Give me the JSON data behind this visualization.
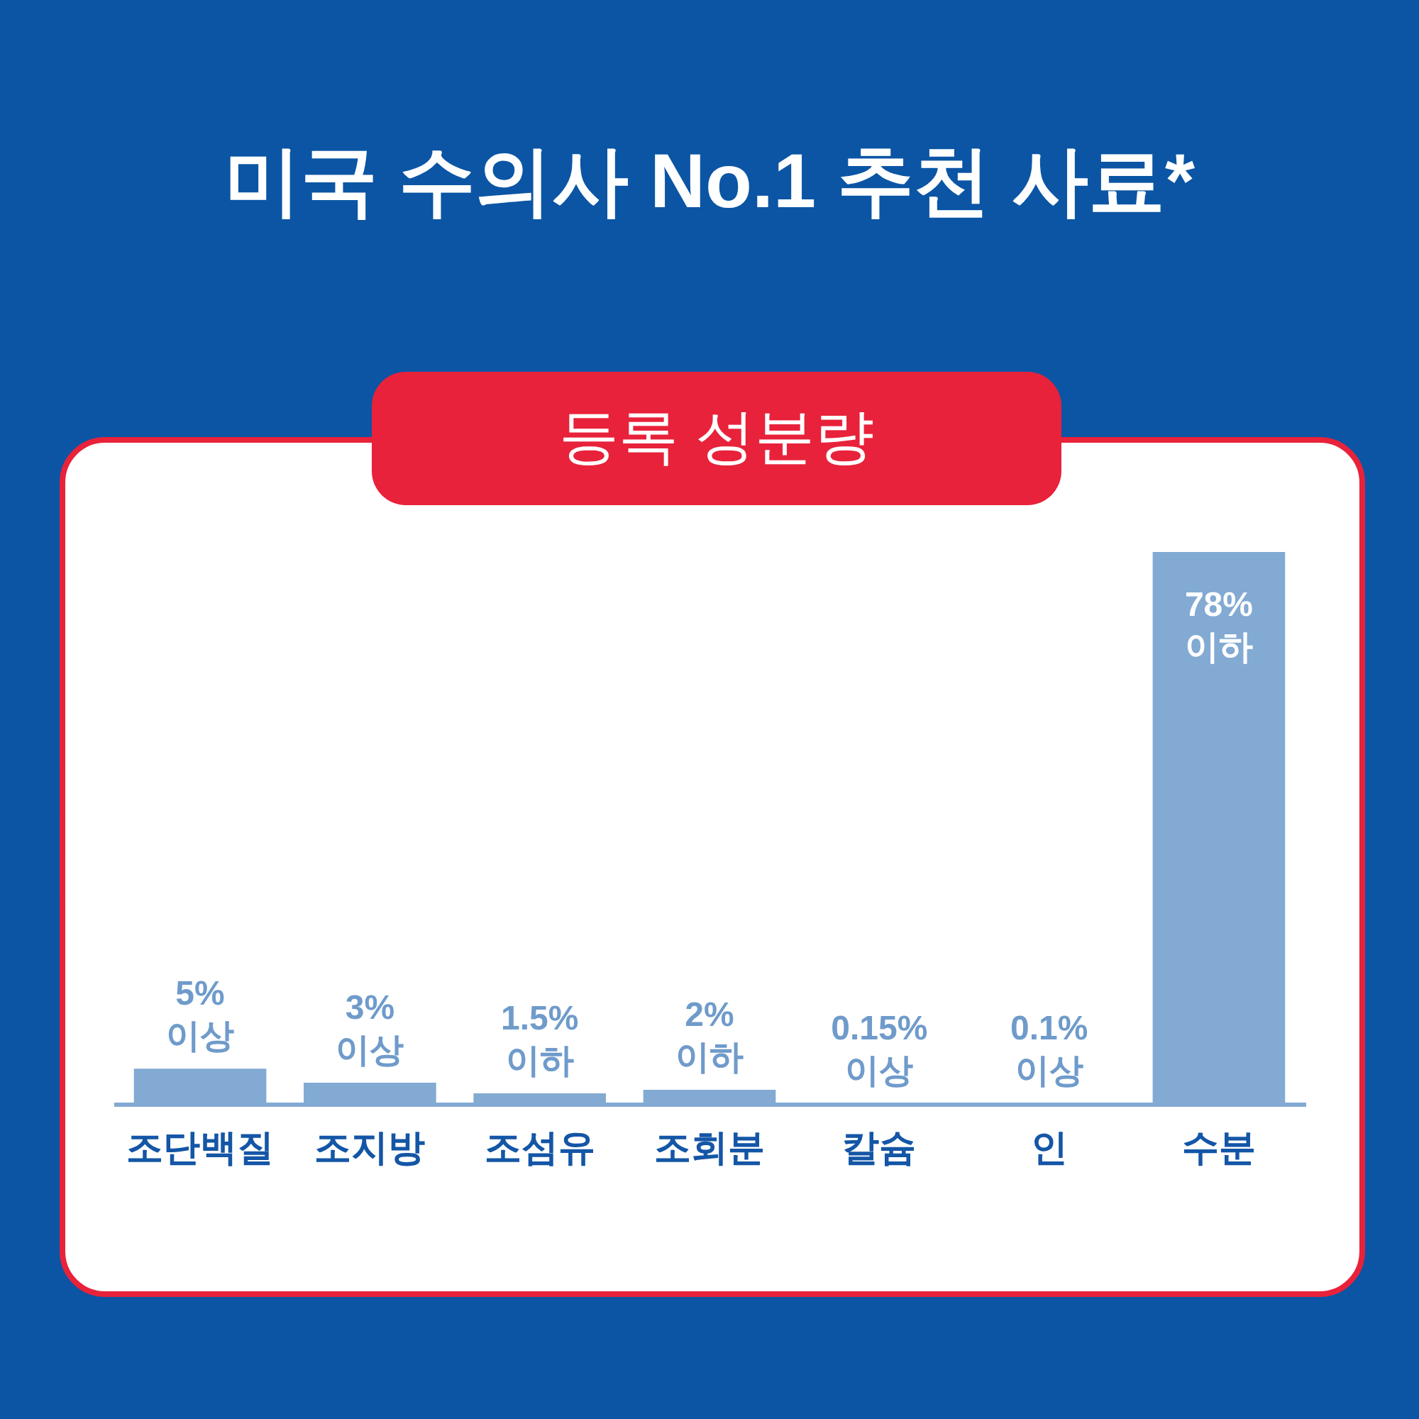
{
  "chart_data": {
    "type": "bar",
    "title": "미국 수의사 No.1 추천 사료*",
    "subtitle": "등록 성분량",
    "categories": [
      "조단백질",
      "조지방",
      "조섬유",
      "조회분",
      "칼슘",
      "인",
      "수분"
    ],
    "values": [
      5,
      3,
      1.5,
      2,
      0.15,
      0.1,
      78
    ],
    "value_labels": [
      "5% 이상",
      "3% 이상",
      "1.5% 이하",
      "2% 이하",
      "0.15% 이상",
      "0.1% 이상",
      "78% 이하"
    ],
    "color": "#82aad3"
  }
}
